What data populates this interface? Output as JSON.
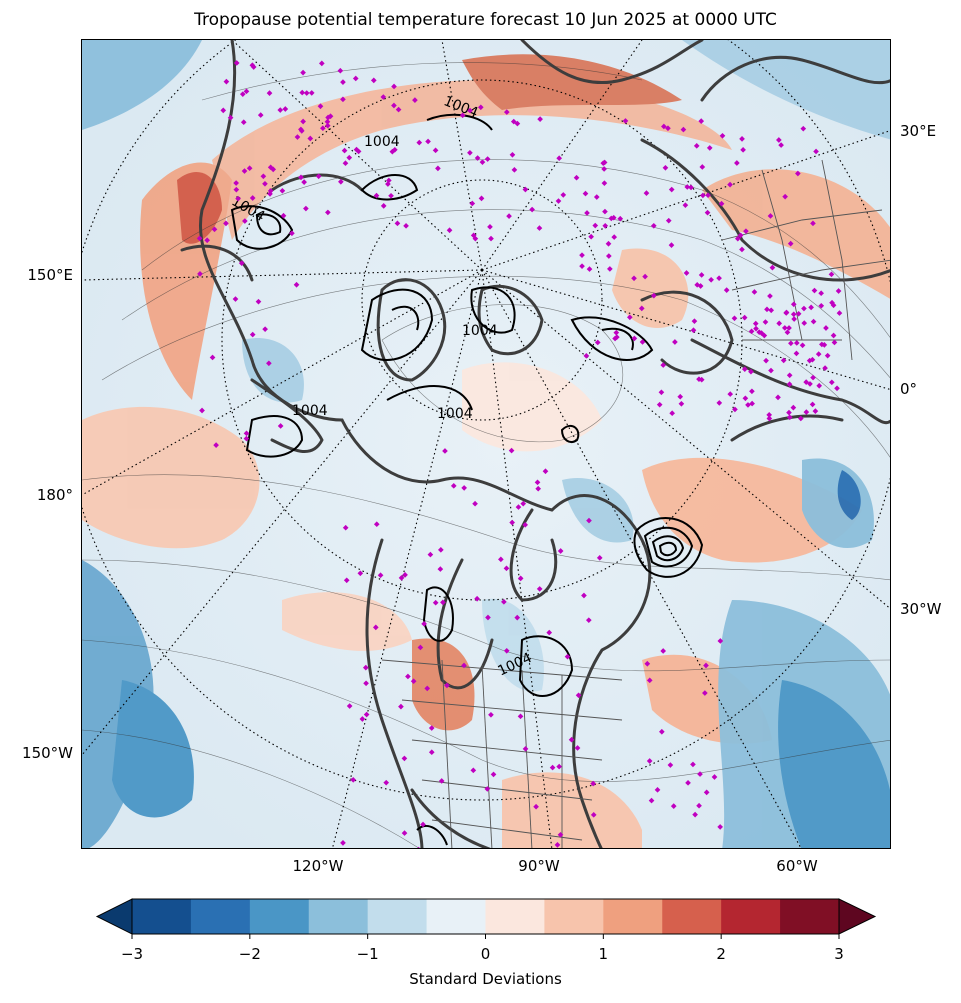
{
  "title": "Tropopause potential temperature forecast 10 Jun 2025 at 0000 UTC",
  "map": {
    "projection": "north-polar-stereographic",
    "longitude_labels_right": [
      "30°E",
      "0°",
      "30°W"
    ],
    "longitude_labels_left": [
      "150°E",
      "180°",
      "150°W"
    ],
    "longitude_labels_bottom": [
      "120°W",
      "90°W",
      "60°W"
    ],
    "pressure_contour_label": "1004",
    "colors": {
      "coastline": "#3d3d3d",
      "station_markers": "#c000c0",
      "pressure_contours": "#000000",
      "graticule": "#000000"
    }
  },
  "colorbar": {
    "label": "Standard Deviations",
    "ticks": [
      "−3",
      "−2",
      "−1",
      "0",
      "1",
      "2",
      "3"
    ],
    "extend": "both",
    "colors": [
      "#0a3a6e",
      "#144f8f",
      "#2a70b3",
      "#4a96c6",
      "#8cbfdb",
      "#c2ddec",
      "#e8f1f7",
      "#fbe7de",
      "#f7c4ac",
      "#efa07f",
      "#d6604d",
      "#b42630",
      "#800f25",
      "#5e0620"
    ]
  }
}
